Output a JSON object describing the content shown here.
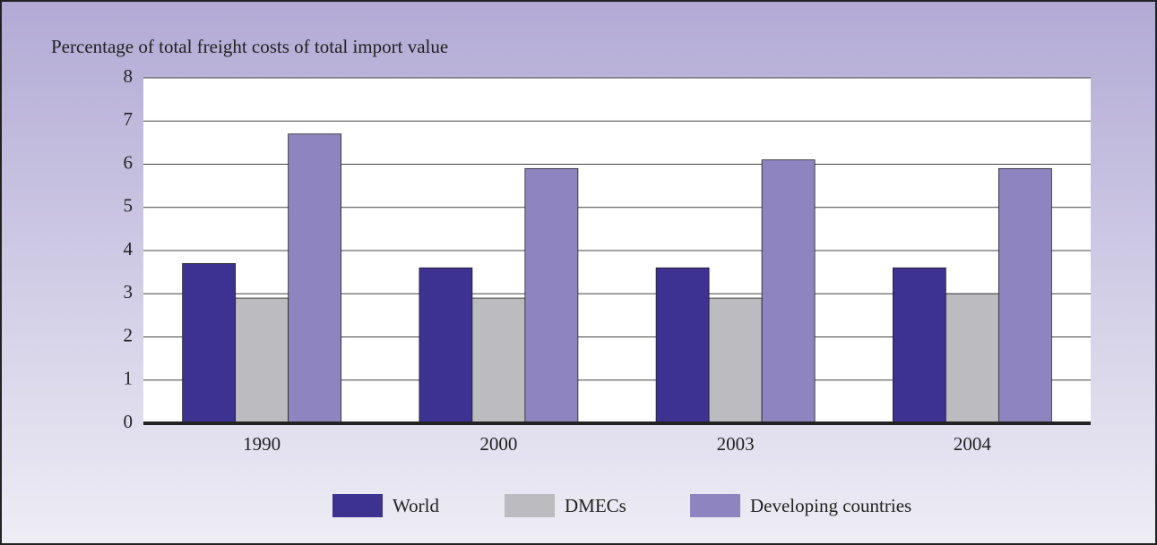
{
  "chart_data": {
    "type": "bar",
    "y_axis_label": "Percentage of total freight costs of total import value",
    "categories": [
      "1990",
      "2000",
      "2003",
      "2004"
    ],
    "series": [
      {
        "name": "World",
        "color": "#3d3291",
        "values": [
          3.7,
          3.6,
          3.6,
          3.6
        ]
      },
      {
        "name": "DMECs",
        "color": "#bcbcc0",
        "values": [
          2.9,
          2.9,
          2.9,
          3.0
        ]
      },
      {
        "name": "Developing countries",
        "color": "#8e84c0",
        "values": [
          6.7,
          5.9,
          6.1,
          5.9
        ]
      }
    ],
    "ylim": [
      0,
      8
    ],
    "yticks": [
      0,
      1,
      2,
      3,
      4,
      5,
      6,
      7,
      8
    ],
    "grid": true,
    "legend": "bottom"
  }
}
